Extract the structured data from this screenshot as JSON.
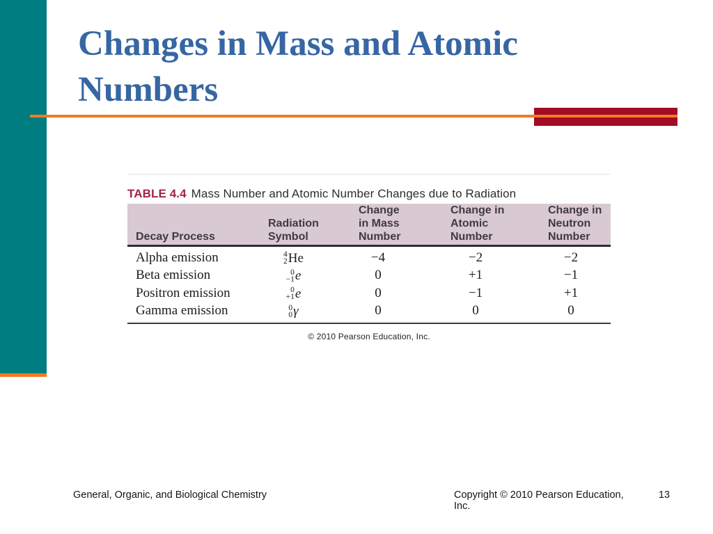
{
  "slide": {
    "title": "Changes in Mass and Atomic\nNumbers"
  },
  "table": {
    "caption_label": "TABLE 4.4",
    "caption_title": "Mass Number and Atomic Number Changes due to Radiation",
    "columns": [
      "Decay Process",
      "Radiation\nSymbol",
      "Change\nin Mass\nNumber",
      "Change in\nAtomic\nNumber",
      "Change in\nNeutron\nNumber"
    ],
    "rows": [
      {
        "process": "Alpha emission",
        "symbol": {
          "top": "4",
          "bottom": "2",
          "element": "He"
        },
        "mass_change": "−4",
        "atomic_change": "−2",
        "neutron_change": "−2"
      },
      {
        "process": "Beta emission",
        "symbol": {
          "top": "0",
          "bottom": "−1",
          "element": "e"
        },
        "mass_change": "0",
        "atomic_change": "+1",
        "neutron_change": "−1"
      },
      {
        "process": "Positron emission",
        "symbol": {
          "top": "0",
          "bottom": "+1",
          "element": "e"
        },
        "mass_change": "0",
        "atomic_change": "−1",
        "neutron_change": "+1"
      },
      {
        "process": "Gamma emission",
        "symbol": {
          "top": "0",
          "bottom": "0",
          "element": "γ"
        },
        "mass_change": "0",
        "atomic_change": "0",
        "neutron_change": "0"
      }
    ],
    "credit": "© 2010 Pearson Education, Inc."
  },
  "footer": {
    "left": "General, Organic, and Biological Chemistry",
    "copyright": "Copyright © 2010 Pearson Education, Inc.",
    "page_number": "13"
  },
  "colors": {
    "teal": "#007D81",
    "orange": "#F47B20",
    "dark_red": "#A10C26",
    "title_blue": "#3666A3",
    "caption_red": "#A02345",
    "header_bg": "#D9C9D3"
  }
}
